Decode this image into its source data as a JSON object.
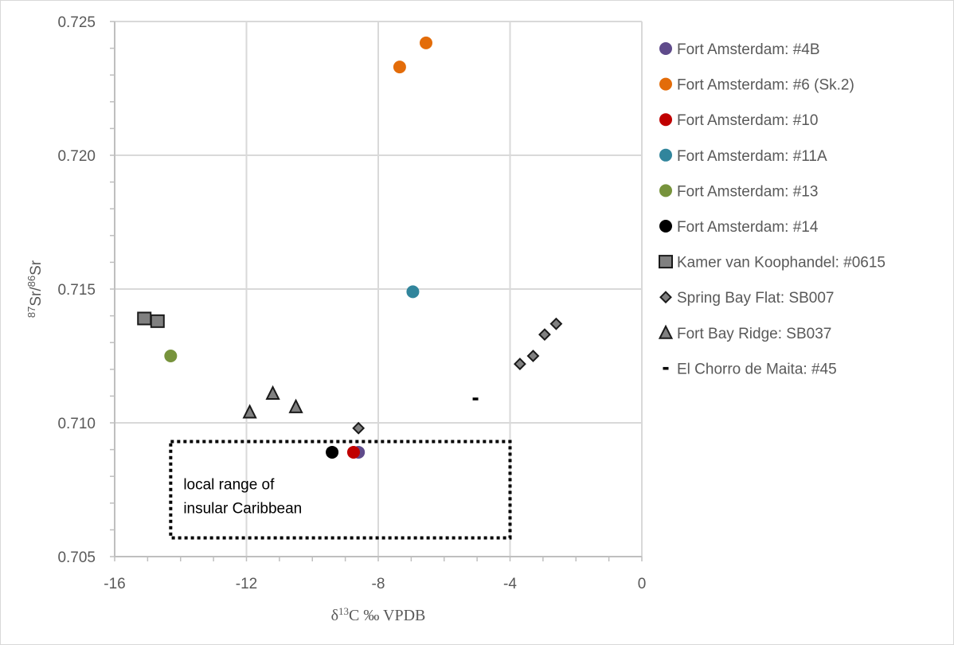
{
  "chart_data": {
    "type": "scatter",
    "title": "",
    "xlabel": {
      "prefix": "δ",
      "sup": "13",
      "suffix": "C ‰ VPDB"
    },
    "ylabel": {
      "sup1": "87",
      "mid": "Sr/",
      "sup2": "86",
      "end": "Sr"
    },
    "xlim": [
      -16,
      0
    ],
    "ylim": [
      0.705,
      0.725
    ],
    "x_ticks": [
      -16,
      -12,
      -8,
      -4,
      0
    ],
    "x_tick_labels": [
      "-16",
      "-12",
      "-8",
      "-4",
      "0"
    ],
    "y_ticks": [
      0.705,
      0.71,
      0.715,
      0.72,
      0.725
    ],
    "y_tick_labels": [
      "0.705",
      "0.710",
      "0.715",
      "0.720",
      "0.725"
    ],
    "x_minor_step": 1,
    "y_minor_step": 0.001,
    "grid": true,
    "legend_position": "right",
    "series": [
      {
        "name": "Fort Amsterdam: #4B",
        "marker": "circle",
        "color": "#5f4b8b",
        "edge": "none",
        "points": [
          [
            -8.6,
            0.7089
          ]
        ]
      },
      {
        "name": "Fort Amsterdam: #6 (Sk.2)",
        "marker": "circle",
        "color": "#e36c09",
        "edge": "none",
        "points": [
          [
            -7.35,
            0.7233
          ],
          [
            -6.55,
            0.7242
          ]
        ]
      },
      {
        "name": "Fort Amsterdam: #10",
        "marker": "circle",
        "color": "#c00000",
        "edge": "none",
        "points": [
          [
            -8.75,
            0.7089
          ]
        ]
      },
      {
        "name": "Fort Amsterdam: #11A",
        "marker": "circle",
        "color": "#31859c",
        "edge": "none",
        "points": [
          [
            -6.95,
            0.7149
          ]
        ]
      },
      {
        "name": "Fort Amsterdam: #13",
        "marker": "circle",
        "color": "#77933c",
        "edge": "none",
        "points": [
          [
            -14.3,
            0.7125
          ]
        ]
      },
      {
        "name": "Fort Amsterdam: #14",
        "marker": "circle",
        "color": "#000000",
        "edge": "none",
        "points": [
          [
            -9.4,
            0.7089
          ]
        ]
      },
      {
        "name": "Kamer van Koophandel: #0615",
        "marker": "square",
        "color": "#808080",
        "edge": "#1a1a1a",
        "points": [
          [
            -15.1,
            0.7139
          ],
          [
            -14.7,
            0.7138
          ]
        ]
      },
      {
        "name": "Spring Bay Flat: SB007",
        "marker": "diamond",
        "color": "#808080",
        "edge": "#1a1a1a",
        "points": [
          [
            -8.6,
            0.7098
          ],
          [
            -3.7,
            0.7122
          ],
          [
            -3.3,
            0.7125
          ],
          [
            -2.95,
            0.7133
          ],
          [
            -2.6,
            0.7137
          ]
        ]
      },
      {
        "name": "Fort Bay Ridge: SB037",
        "marker": "triangle",
        "color": "#808080",
        "edge": "#1a1a1a",
        "points": [
          [
            -11.9,
            0.7104
          ],
          [
            -11.2,
            0.7111
          ],
          [
            -10.5,
            0.7106
          ]
        ]
      },
      {
        "name": "El Chorro de Maita: #45",
        "marker": "dash",
        "color": "#000000",
        "edge": "none",
        "points": [
          [
            -5.05,
            0.7109
          ]
        ]
      }
    ],
    "annotations": [
      {
        "type": "dotted-rect",
        "label_lines": [
          "local range of",
          "insular Caribbean"
        ],
        "x_range": [
          -14.3,
          -4.0
        ],
        "y_range": [
          0.7057,
          0.7093
        ]
      }
    ]
  },
  "colors": {
    "grid": "#d9d9d9",
    "axis": "#bfbfbf",
    "text": "#595959"
  }
}
